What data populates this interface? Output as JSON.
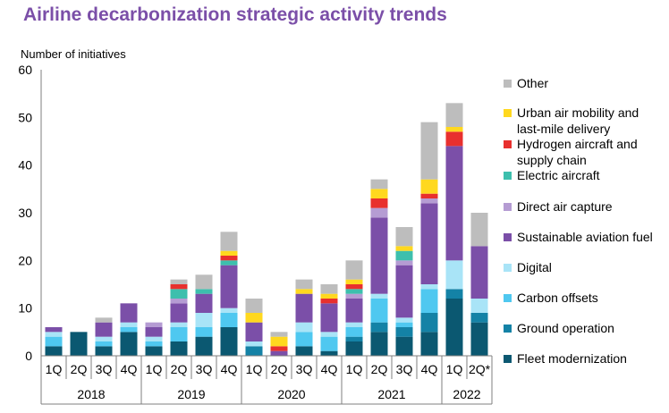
{
  "chart_data": {
    "type": "bar",
    "stacked": true,
    "title": "Airline decarbonization strategic activity trends",
    "ylabel": "Number of initiatives",
    "xlabel": "",
    "ylim": [
      0,
      60
    ],
    "yticks": [
      0,
      10,
      20,
      30,
      40,
      50,
      60
    ],
    "grid": false,
    "legend_position": "right",
    "categories": [
      "1Q",
      "2Q",
      "3Q",
      "4Q",
      "1Q",
      "2Q",
      "3Q",
      "4Q",
      "1Q",
      "2Q",
      "3Q",
      "4Q",
      "1Q",
      "2Q",
      "3Q",
      "4Q",
      "1Q",
      "2Q*"
    ],
    "year_groups": [
      {
        "label": "2018",
        "start": 0,
        "count": 4
      },
      {
        "label": "2019",
        "start": 4,
        "count": 4
      },
      {
        "label": "2020",
        "start": 8,
        "count": 4
      },
      {
        "label": "2021",
        "start": 12,
        "count": 4
      },
      {
        "label": "2022",
        "start": 16,
        "count": 2
      }
    ],
    "series": [
      {
        "name": "Fleet modernization",
        "color": "#0B5871",
        "values": [
          2,
          5,
          2,
          5,
          2,
          3,
          4,
          6,
          0,
          0,
          2,
          1,
          3,
          5,
          4,
          5,
          12,
          7
        ]
      },
      {
        "name": "Ground operation",
        "color": "#1482A6",
        "values": [
          0,
          0,
          0,
          0,
          0,
          0,
          0,
          0,
          2,
          0,
          0,
          0,
          1,
          2,
          2,
          4,
          2,
          2
        ]
      },
      {
        "name": "Carbon offsets",
        "color": "#4FC8F0",
        "values": [
          2,
          0,
          1,
          1,
          1,
          3,
          2,
          3,
          0,
          0,
          3,
          3,
          2,
          5,
          1,
          5,
          0,
          0
        ]
      },
      {
        "name": "Digital",
        "color": "#A9E4F7",
        "values": [
          1,
          0,
          1,
          1,
          1,
          1,
          3,
          1,
          1,
          0,
          2,
          1,
          1,
          1,
          1,
          1,
          6,
          3
        ]
      },
      {
        "name": "Sustainable aviation fuel",
        "color": "#7B4FA8",
        "values": [
          1,
          0,
          3,
          4,
          2,
          4,
          4,
          9,
          4,
          1,
          6,
          6,
          5,
          16,
          11,
          17,
          24,
          11
        ]
      },
      {
        "name": "Direct air capture",
        "color": "#B59CD3",
        "values": [
          0,
          0,
          0,
          0,
          1,
          1,
          0,
          0,
          0,
          0,
          0,
          0,
          1,
          2,
          1,
          1,
          0,
          0
        ]
      },
      {
        "name": "Electric aircraft",
        "color": "#3DBFAD",
        "values": [
          0,
          0,
          0,
          0,
          0,
          2,
          1,
          1,
          0,
          0,
          0,
          0,
          1,
          0,
          2,
          0,
          0,
          0
        ]
      },
      {
        "name": "Hydrogen aircraft and supply chain",
        "color": "#E8302E",
        "values": [
          0,
          0,
          0,
          0,
          0,
          1,
          0,
          1,
          0,
          1,
          0,
          1,
          1,
          2,
          0,
          1,
          3,
          0
        ]
      },
      {
        "name": "Urban air mobility and last-mile delivery",
        "color": "#FFD81F",
        "values": [
          0,
          0,
          0,
          0,
          0,
          0,
          0,
          1,
          2,
          2,
          1,
          1,
          1,
          2,
          1,
          3,
          1,
          0
        ]
      },
      {
        "name": "Other",
        "color": "#BDBDBD",
        "values": [
          0,
          0,
          1,
          0,
          0,
          1,
          3,
          4,
          3,
          1,
          2,
          2,
          4,
          2,
          4,
          12,
          5,
          7
        ]
      }
    ],
    "legend_lines": {
      "Fleet modernization": [
        "Fleet modernization"
      ],
      "Ground operation": [
        "Ground operation"
      ],
      "Carbon offsets": [
        "Carbon offsets"
      ],
      "Digital": [
        "Digital"
      ],
      "Sustainable aviation fuel": [
        "Sustainable aviation fuel"
      ],
      "Direct air capture": [
        "Direct air capture"
      ],
      "Electric aircraft": [
        "Electric aircraft"
      ],
      "Hydrogen aircraft and supply chain": [
        "Hydrogen aircraft and",
        "supply chain"
      ],
      "Urban air mobility and last-mile delivery": [
        "Urban air mobility and",
        "last-mile delivery"
      ],
      "Other": [
        "Other"
      ]
    }
  }
}
